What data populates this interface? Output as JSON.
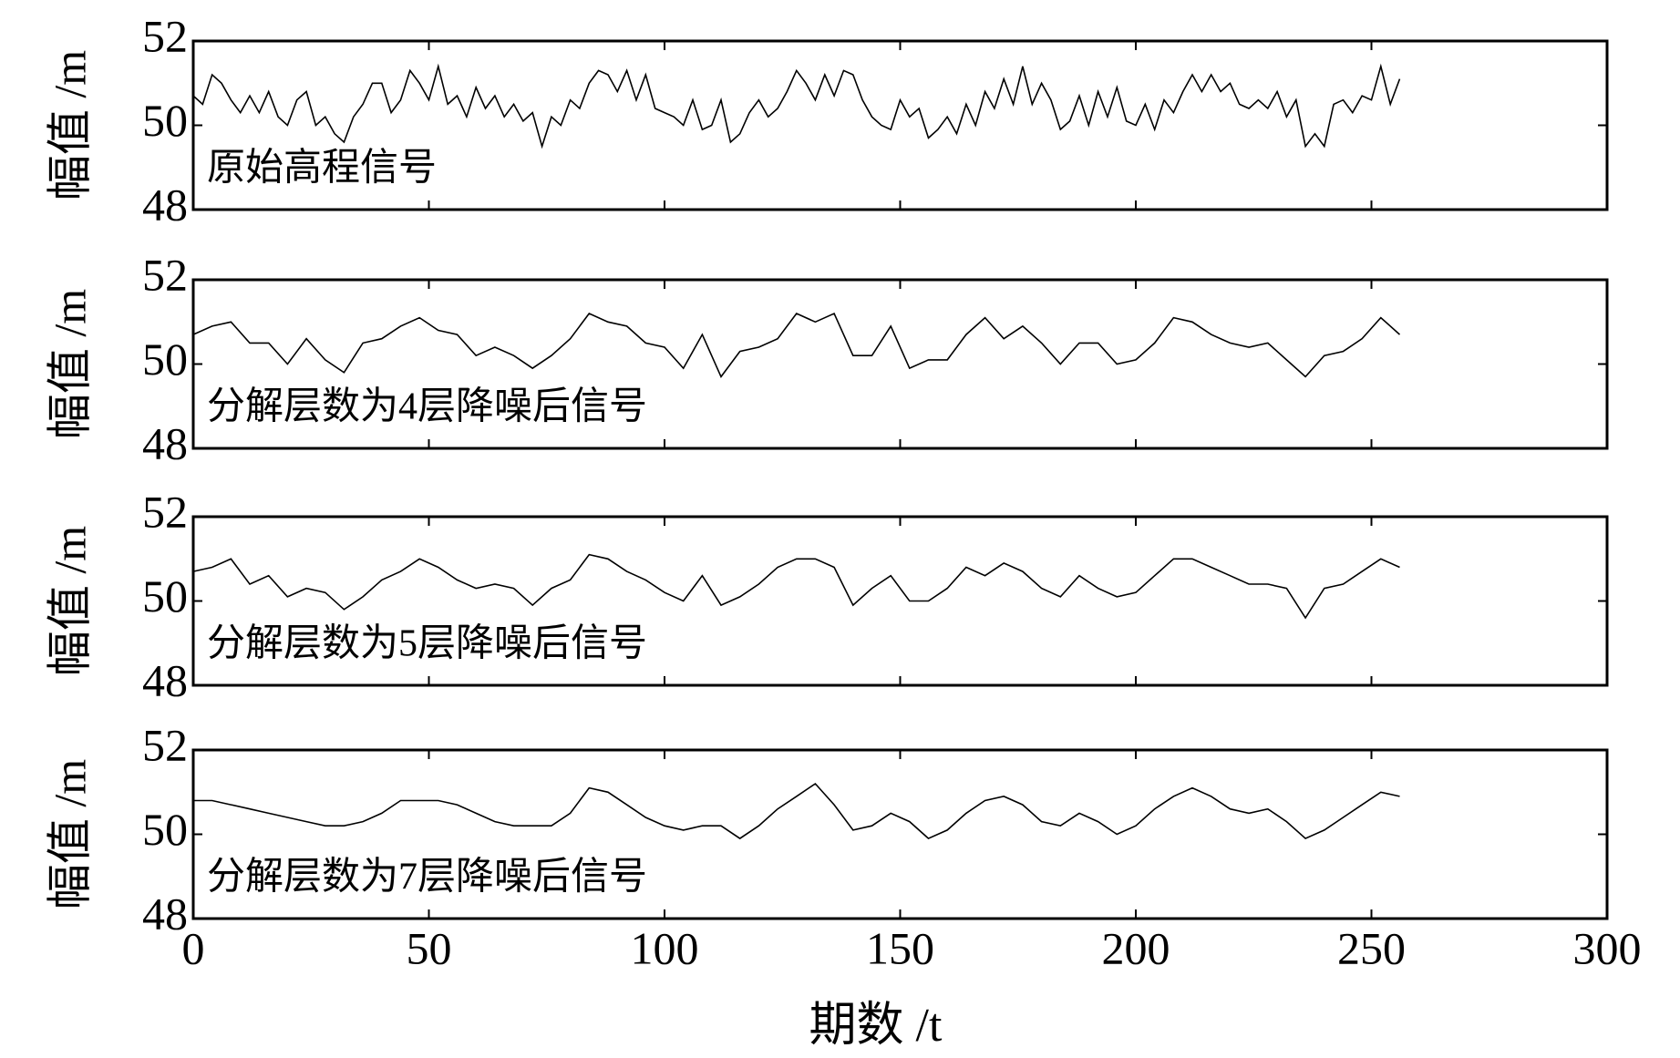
{
  "chart_data": [
    {
      "type": "line",
      "annotation": "原始高程信号",
      "ylabel": "幅值 /m",
      "color": "#000000",
      "xlim": [
        0,
        300
      ],
      "xticks": [
        0,
        50,
        100,
        150,
        200,
        250,
        300
      ],
      "ylim": [
        48,
        52
      ],
      "yticks": [
        48,
        50,
        52
      ],
      "x": [
        0,
        2,
        4,
        6,
        8,
        10,
        12,
        14,
        16,
        18,
        20,
        22,
        24,
        26,
        28,
        30,
        32,
        34,
        36,
        38,
        40,
        42,
        44,
        46,
        48,
        50,
        52,
        54,
        56,
        58,
        60,
        62,
        64,
        66,
        68,
        70,
        72,
        74,
        76,
        78,
        80,
        82,
        84,
        86,
        88,
        90,
        92,
        94,
        96,
        98,
        100,
        102,
        104,
        106,
        108,
        110,
        112,
        114,
        116,
        118,
        120,
        122,
        124,
        126,
        128,
        130,
        132,
        134,
        136,
        138,
        140,
        142,
        144,
        146,
        148,
        150,
        152,
        154,
        156,
        158,
        160,
        162,
        164,
        166,
        168,
        170,
        172,
        174,
        176,
        178,
        180,
        182,
        184,
        186,
        188,
        190,
        192,
        194,
        196,
        198,
        200,
        202,
        204,
        206,
        208,
        210,
        212,
        214,
        216,
        218,
        220,
        222,
        224,
        226,
        228,
        230,
        232,
        234,
        236,
        238,
        240,
        242,
        244,
        246,
        248,
        250,
        252,
        254,
        256
      ],
      "values": [
        50.7,
        50.5,
        51.2,
        51.0,
        50.6,
        50.3,
        50.7,
        50.3,
        50.8,
        50.2,
        50.0,
        50.6,
        50.8,
        50.0,
        50.2,
        49.8,
        49.6,
        50.2,
        50.5,
        51.0,
        51.0,
        50.3,
        50.6,
        51.3,
        51.0,
        50.6,
        51.4,
        50.5,
        50.7,
        50.2,
        50.9,
        50.4,
        50.7,
        50.2,
        50.5,
        50.1,
        50.3,
        49.5,
        50.2,
        50.0,
        50.6,
        50.4,
        51.0,
        51.3,
        51.2,
        50.8,
        51.3,
        50.6,
        51.2,
        50.4,
        50.3,
        50.2,
        50.0,
        50.6,
        49.9,
        50.0,
        50.6,
        49.6,
        49.8,
        50.3,
        50.6,
        50.2,
        50.4,
        50.8,
        51.3,
        51.0,
        50.6,
        51.2,
        50.7,
        51.3,
        51.2,
        50.6,
        50.2,
        50.0,
        49.9,
        50.6,
        50.2,
        50.4,
        49.7,
        49.9,
        50.2,
        49.8,
        50.5,
        50.0,
        50.8,
        50.4,
        51.1,
        50.5,
        51.4,
        50.5,
        51.0,
        50.6,
        49.9,
        50.1,
        50.7,
        50.0,
        50.8,
        50.2,
        50.9,
        50.1,
        50.0,
        50.5,
        49.9,
        50.6,
        50.3,
        50.8,
        51.2,
        50.8,
        51.2,
        50.8,
        51.0,
        50.5,
        50.4,
        50.6,
        50.4,
        50.8,
        50.2,
        50.6,
        49.5,
        49.8,
        49.5,
        50.5,
        50.6,
        50.3,
        50.7,
        50.6,
        51.4,
        50.5,
        51.1
      ]
    },
    {
      "type": "line",
      "annotation": "分解层数为4层降噪后信号",
      "ylabel": "幅值 /m",
      "color": "#000000",
      "xlim": [
        0,
        300
      ],
      "xticks": [
        0,
        50,
        100,
        150,
        200,
        250,
        300
      ],
      "ylim": [
        48,
        52
      ],
      "yticks": [
        48,
        50,
        52
      ],
      "x": [
        0,
        4,
        8,
        12,
        16,
        20,
        24,
        28,
        32,
        36,
        40,
        44,
        48,
        52,
        56,
        60,
        64,
        68,
        72,
        76,
        80,
        84,
        88,
        92,
        96,
        100,
        104,
        108,
        112,
        116,
        120,
        124,
        128,
        132,
        136,
        140,
        144,
        148,
        152,
        156,
        160,
        164,
        168,
        172,
        176,
        180,
        184,
        188,
        192,
        196,
        200,
        204,
        208,
        212,
        216,
        220,
        224,
        228,
        232,
        236,
        240,
        244,
        248,
        252,
        256
      ],
      "values": [
        50.7,
        50.9,
        51.0,
        50.5,
        50.5,
        50.0,
        50.6,
        50.1,
        49.8,
        50.5,
        50.6,
        50.9,
        51.1,
        50.8,
        50.7,
        50.2,
        50.4,
        50.2,
        49.9,
        50.2,
        50.6,
        51.2,
        51.0,
        50.9,
        50.5,
        50.4,
        49.9,
        50.7,
        49.7,
        50.3,
        50.4,
        50.6,
        51.2,
        51.0,
        51.2,
        50.2,
        50.2,
        50.9,
        49.9,
        50.1,
        50.1,
        50.7,
        51.1,
        50.6,
        50.9,
        50.5,
        50.0,
        50.5,
        50.5,
        50.0,
        50.1,
        50.5,
        51.1,
        51.0,
        50.7,
        50.5,
        50.4,
        50.5,
        50.1,
        49.7,
        50.2,
        50.3,
        50.6,
        51.1,
        50.7
      ]
    },
    {
      "type": "line",
      "annotation": "分解层数为5层降噪后信号",
      "ylabel": "幅值 /m",
      "color": "#000000",
      "xlim": [
        0,
        300
      ],
      "xticks": [
        0,
        50,
        100,
        150,
        200,
        250,
        300
      ],
      "ylim": [
        48,
        52
      ],
      "yticks": [
        48,
        50,
        52
      ],
      "x": [
        0,
        4,
        8,
        12,
        16,
        20,
        24,
        28,
        32,
        36,
        40,
        44,
        48,
        52,
        56,
        60,
        64,
        68,
        72,
        76,
        80,
        84,
        88,
        92,
        96,
        100,
        104,
        108,
        112,
        116,
        120,
        124,
        128,
        132,
        136,
        140,
        144,
        148,
        152,
        156,
        160,
        164,
        168,
        172,
        176,
        180,
        184,
        188,
        192,
        196,
        200,
        204,
        208,
        212,
        216,
        220,
        224,
        228,
        232,
        236,
        240,
        244,
        248,
        252,
        256
      ],
      "values": [
        50.7,
        50.8,
        51.0,
        50.4,
        50.6,
        50.1,
        50.3,
        50.2,
        49.8,
        50.1,
        50.5,
        50.7,
        51.0,
        50.8,
        50.5,
        50.3,
        50.4,
        50.3,
        49.9,
        50.3,
        50.5,
        51.1,
        51.0,
        50.7,
        50.5,
        50.2,
        50.0,
        50.6,
        49.9,
        50.1,
        50.4,
        50.8,
        51.0,
        51.0,
        50.8,
        49.9,
        50.3,
        50.6,
        50.0,
        50.0,
        50.3,
        50.8,
        50.6,
        50.9,
        50.7,
        50.3,
        50.1,
        50.6,
        50.3,
        50.1,
        50.2,
        50.6,
        51.0,
        51.0,
        50.8,
        50.6,
        50.4,
        50.4,
        50.3,
        49.6,
        50.3,
        50.4,
        50.7,
        51.0,
        50.8
      ]
    },
    {
      "type": "line",
      "annotation": "分解层数为7层降噪后信号",
      "ylabel": "幅值 /m",
      "xlabel": "期数 /t",
      "color": "#000000",
      "xlim": [
        0,
        300
      ],
      "xticks": [
        0,
        50,
        100,
        150,
        200,
        250,
        300
      ],
      "ylim": [
        48,
        52
      ],
      "yticks": [
        48,
        50,
        52
      ],
      "x": [
        0,
        4,
        8,
        12,
        16,
        20,
        24,
        28,
        32,
        36,
        40,
        44,
        48,
        52,
        56,
        60,
        64,
        68,
        72,
        76,
        80,
        84,
        88,
        92,
        96,
        100,
        104,
        108,
        112,
        116,
        120,
        124,
        128,
        132,
        136,
        140,
        144,
        148,
        152,
        156,
        160,
        164,
        168,
        172,
        176,
        180,
        184,
        188,
        192,
        196,
        200,
        204,
        208,
        212,
        216,
        220,
        224,
        228,
        232,
        236,
        240,
        244,
        248,
        252,
        256
      ],
      "values": [
        50.8,
        50.8,
        50.7,
        50.6,
        50.5,
        50.4,
        50.3,
        50.2,
        50.2,
        50.3,
        50.5,
        50.8,
        50.8,
        50.8,
        50.7,
        50.5,
        50.3,
        50.2,
        50.2,
        50.2,
        50.5,
        51.1,
        51.0,
        50.7,
        50.4,
        50.2,
        50.1,
        50.2,
        50.2,
        49.9,
        50.2,
        50.6,
        50.9,
        51.2,
        50.7,
        50.1,
        50.2,
        50.5,
        50.3,
        49.9,
        50.1,
        50.5,
        50.8,
        50.9,
        50.7,
        50.3,
        50.2,
        50.5,
        50.3,
        50.0,
        50.2,
        50.6,
        50.9,
        51.1,
        50.9,
        50.6,
        50.5,
        50.6,
        50.3,
        49.9,
        50.1,
        50.4,
        50.7,
        51.0,
        50.9
      ]
    }
  ]
}
